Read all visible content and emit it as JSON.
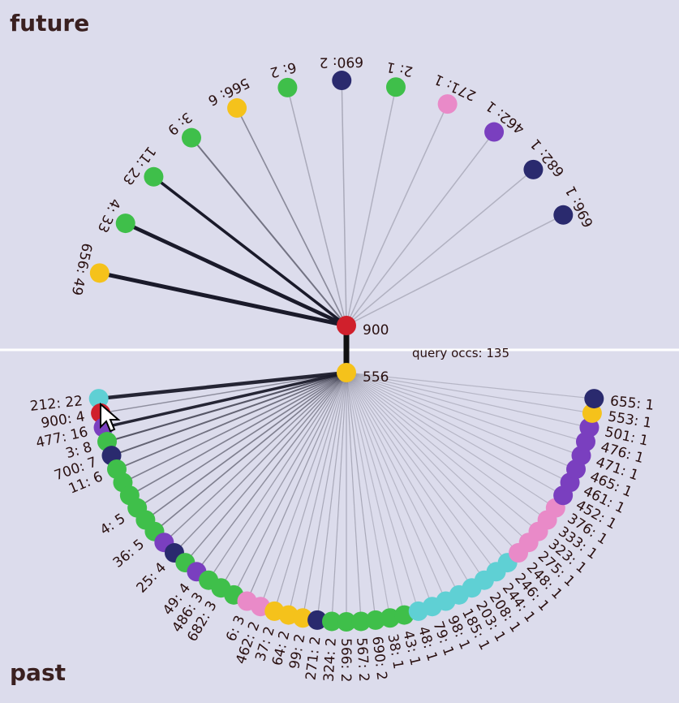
{
  "labels": {
    "future": "future",
    "past": "past"
  },
  "query": {
    "top_node": "900",
    "bottom_node": "556",
    "occurrences_text": "query occs: 135"
  },
  "colors": {
    "background": "#dcdcec",
    "red": "#d0202c",
    "yellow": "#f5c21b",
    "green": "#3fbf4a",
    "navy": "#2a2a6e",
    "purple": "#7a3fbf",
    "pink": "#e98ac8",
    "cyan": "#5fd0d4"
  },
  "future": [
    {
      "label": "656: 49",
      "color": "yellow",
      "weight": 49
    },
    {
      "label": "4: 33",
      "color": "green",
      "weight": 33
    },
    {
      "label": "11: 23",
      "color": "green",
      "weight": 23
    },
    {
      "label": "3: 9",
      "color": "green",
      "weight": 9
    },
    {
      "label": "566: 6",
      "color": "yellow",
      "weight": 6
    },
    {
      "label": "6: 2",
      "color": "green",
      "weight": 2
    },
    {
      "label": "690: 2",
      "color": "navy",
      "weight": 2
    },
    {
      "label": "2: 1",
      "color": "green",
      "weight": 1
    },
    {
      "label": "271: 1",
      "color": "pink",
      "weight": 1
    },
    {
      "label": "462: 1",
      "color": "purple",
      "weight": 1
    },
    {
      "label": "682: 1",
      "color": "navy",
      "weight": 1
    },
    {
      "label": "696: 1",
      "color": "navy",
      "weight": 1
    }
  ],
  "past": [
    {
      "label": "212: 22",
      "color": "cyan",
      "weight": 22
    },
    {
      "label": "900: 4",
      "color": "red",
      "weight": 4
    },
    {
      "label": "477: 16",
      "color": "purple",
      "weight": 16
    },
    {
      "label": "3: 8",
      "color": "green",
      "weight": 8
    },
    {
      "label": "700: 7",
      "color": "navy",
      "weight": 7
    },
    {
      "label": "11: 6",
      "color": "green",
      "weight": 6
    },
    {
      "label": "",
      "color": "green",
      "weight": 5
    },
    {
      "label": "",
      "color": "green",
      "weight": 5
    },
    {
      "label": "4: 5",
      "color": "green",
      "weight": 5
    },
    {
      "label": "",
      "color": "green",
      "weight": 5
    },
    {
      "label": "36: 5",
      "color": "green",
      "weight": 5
    },
    {
      "label": "",
      "color": "purple",
      "weight": 4
    },
    {
      "label": "25: 4",
      "color": "navy",
      "weight": 4
    },
    {
      "label": "",
      "color": "green",
      "weight": 4
    },
    {
      "label": "49: 4",
      "color": "purple",
      "weight": 4
    },
    {
      "label": "486: 3",
      "color": "green",
      "weight": 3
    },
    {
      "label": "682: 3",
      "color": "green",
      "weight": 3
    },
    {
      "label": "",
      "color": "green",
      "weight": 3
    },
    {
      "label": "6: 3",
      "color": "pink",
      "weight": 3
    },
    {
      "label": "462: 2",
      "color": "pink",
      "weight": 2
    },
    {
      "label": "37: 2",
      "color": "yellow",
      "weight": 2
    },
    {
      "label": "64: 2",
      "color": "yellow",
      "weight": 2
    },
    {
      "label": "99: 2",
      "color": "yellow",
      "weight": 2
    },
    {
      "label": "271: 2",
      "color": "navy",
      "weight": 2
    },
    {
      "label": "324: 2",
      "color": "green",
      "weight": 2
    },
    {
      "label": "566: 2",
      "color": "green",
      "weight": 2
    },
    {
      "label": "567: 2",
      "color": "green",
      "weight": 2
    },
    {
      "label": "690: 2",
      "color": "green",
      "weight": 2
    },
    {
      "label": "38: 1",
      "color": "green",
      "weight": 1
    },
    {
      "label": "43: 1",
      "color": "green",
      "weight": 1
    },
    {
      "label": "48: 1",
      "color": "cyan",
      "weight": 1
    },
    {
      "label": "79: 1",
      "color": "cyan",
      "weight": 1
    },
    {
      "label": "98: 1",
      "color": "cyan",
      "weight": 1
    },
    {
      "label": "185: 1",
      "color": "cyan",
      "weight": 1
    },
    {
      "label": "203: 1",
      "color": "cyan",
      "weight": 1
    },
    {
      "label": "208: 1",
      "color": "cyan",
      "weight": 1
    },
    {
      "label": "244: 1",
      "color": "cyan",
      "weight": 1
    },
    {
      "label": "246: 1",
      "color": "cyan",
      "weight": 1
    },
    {
      "label": "248: 1",
      "color": "pink",
      "weight": 1
    },
    {
      "label": "275: 1",
      "color": "pink",
      "weight": 1
    },
    {
      "label": "323: 1",
      "color": "pink",
      "weight": 1
    },
    {
      "label": "333: 1",
      "color": "pink",
      "weight": 1
    },
    {
      "label": "376: 1",
      "color": "pink",
      "weight": 1
    },
    {
      "label": "452: 1",
      "color": "purple",
      "weight": 1
    },
    {
      "label": "461: 1",
      "color": "purple",
      "weight": 1
    },
    {
      "label": "465: 1",
      "color": "purple",
      "weight": 1
    },
    {
      "label": "471: 1",
      "color": "purple",
      "weight": 1
    },
    {
      "label": "476: 1",
      "color": "purple",
      "weight": 1
    },
    {
      "label": "501: 1",
      "color": "purple",
      "weight": 1
    },
    {
      "label": "553: 1",
      "color": "yellow",
      "weight": 1
    },
    {
      "label": "655: 1",
      "color": "navy",
      "weight": 1
    }
  ]
}
